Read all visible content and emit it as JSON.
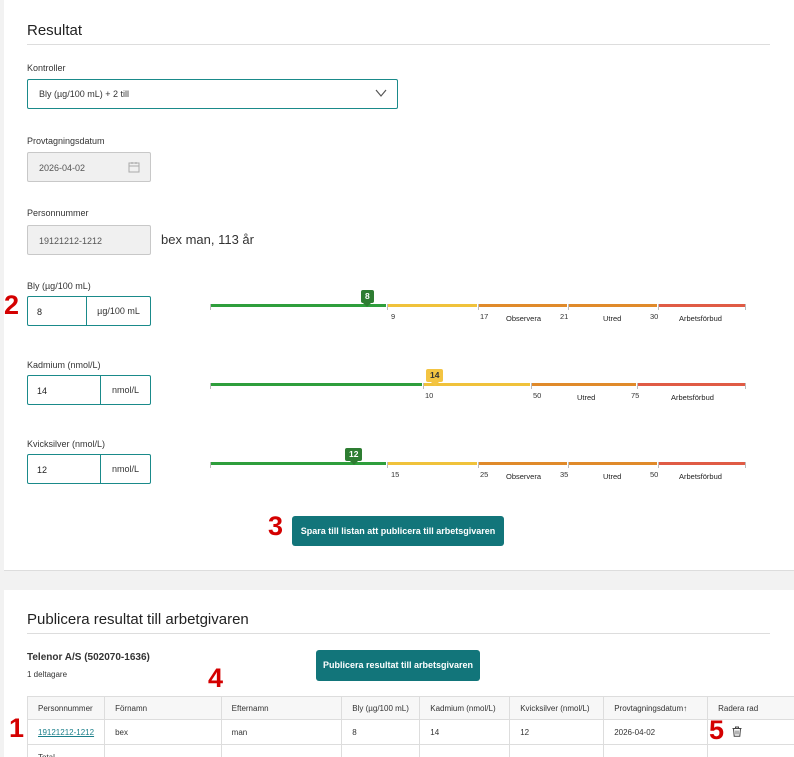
{
  "result_section": {
    "title": "Resultat",
    "controls_label": "Kontroller",
    "controls_value": "Bly (µg/100 mL)   + 2 till",
    "date_label": "Provtagningsdatum",
    "date_value": "2026-04-02",
    "pnr_label": "Personnummer",
    "pnr_value": "19121212-1212",
    "person_info": "bex man, 113 år",
    "measurements": [
      {
        "label": "Bly (µg/100 mL)",
        "value": "8",
        "unit": "µg/100 mL",
        "marker": "8",
        "ticks": [
          "9",
          "17",
          "21",
          "30"
        ],
        "zones": [
          "Observera",
          "Utred",
          "Arbetsförbud"
        ]
      },
      {
        "label": "Kadmium (nmol/L)",
        "value": "14",
        "unit": "nmol/L",
        "marker": "14",
        "ticks": [
          "10",
          "50",
          "75"
        ],
        "zones": [
          "Utred",
          "Arbetsförbud"
        ]
      },
      {
        "label": "Kvicksilver (nmol/L)",
        "value": "12",
        "unit": "nmol/L",
        "marker": "12",
        "ticks": [
          "15",
          "25",
          "35",
          "50"
        ],
        "zones": [
          "Observera",
          "Utred",
          "Arbetsförbud"
        ]
      }
    ],
    "save_button": "Spara till listan att publicera till arbetsgivaren"
  },
  "publish_section": {
    "title": "Publicera resultat till arbetgivaren",
    "company": "Telenor A/S (502070-1636)",
    "participants": "1 deltagare",
    "publish_button": "Publicera resultat till arbetsgivaren",
    "columns": [
      "Personnummer",
      "Förnamn",
      "Efternamn",
      "Bly (µg/100 mL)",
      "Kadmium (nmol/L)",
      "Kvicksilver (nmol/L)",
      "Provtagningsdatum",
      "Radera rad"
    ],
    "sort_indicator": "↑",
    "rows": [
      [
        "19121212-1212",
        "bex",
        "man",
        "8",
        "14",
        "12",
        "2026-04-02"
      ]
    ],
    "total_label": "Total"
  },
  "annotations": [
    "1",
    "2",
    "3",
    "4",
    "5"
  ],
  "colors": {
    "accent": "#12757a",
    "green": "#2e9e3c",
    "yellow": "#f0c23b",
    "orange": "#e08a2a",
    "red": "#e05b45",
    "annotation": "#d40000"
  },
  "icons": [
    "chevron-down-icon",
    "calendar-icon",
    "trash-icon"
  ]
}
